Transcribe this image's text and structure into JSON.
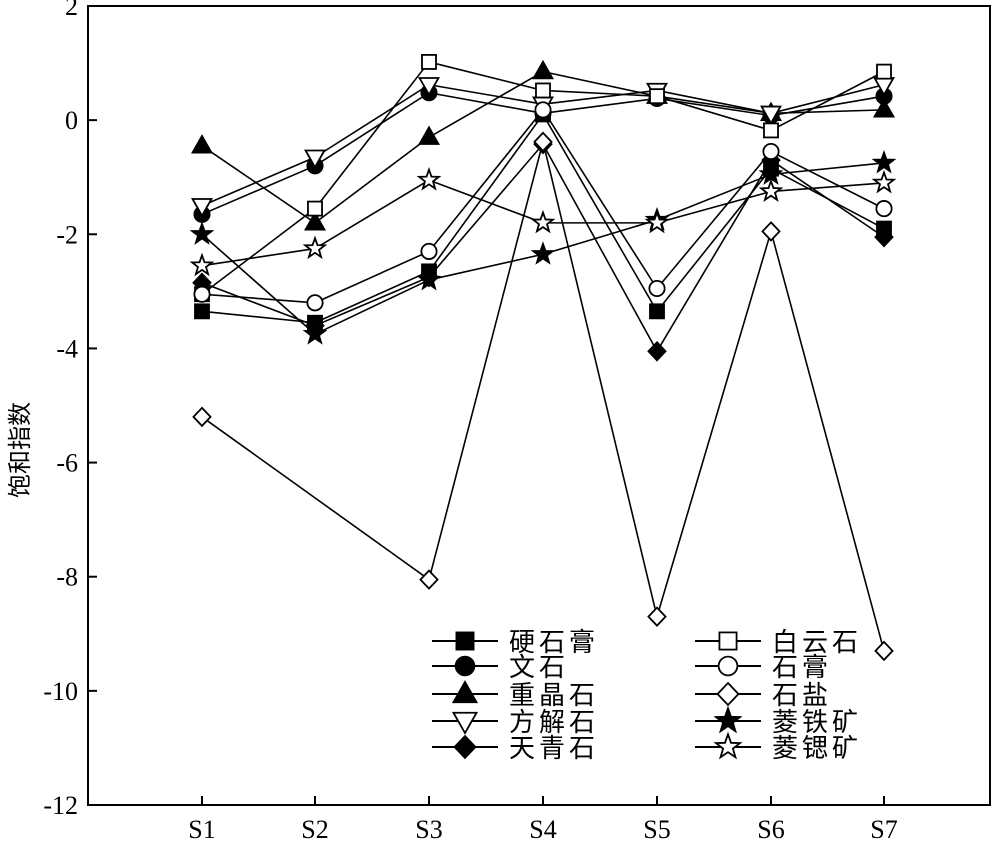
{
  "chart_data": {
    "type": "line",
    "title": "",
    "xlabel": "",
    "ylabel": "饱和指数",
    "categories": [
      "S1",
      "S2",
      "S3",
      "S4",
      "S5",
      "S6",
      "S7"
    ],
    "ylim": [
      -12,
      2
    ],
    "yticks": [
      2,
      0,
      -2,
      -4,
      -6,
      -8,
      -10,
      -12
    ],
    "grid": false,
    "legend_position": "bottom-right",
    "series": [
      {
        "name": "硬石膏",
        "marker": "square",
        "fill": "filled",
        "values": [
          -3.35,
          -3.55,
          -2.65,
          0.1,
          -3.35,
          -0.85,
          -1.9
        ]
      },
      {
        "name": "文石",
        "marker": "circle",
        "fill": "filled",
        "values": [
          -1.65,
          -0.8,
          0.48,
          0.12,
          0.38,
          0.08,
          0.42
        ]
      },
      {
        "name": "重晶石",
        "marker": "triangle-up",
        "fill": "filled",
        "values": [
          -0.45,
          -1.8,
          -0.3,
          0.85,
          0.42,
          0.12,
          0.18
        ]
      },
      {
        "name": "方解石",
        "marker": "triangle-down",
        "fill": "open",
        "values": [
          -1.5,
          -0.65,
          0.62,
          0.28,
          0.52,
          0.12,
          0.62
        ]
      },
      {
        "name": "天青石",
        "marker": "diamond",
        "fill": "filled",
        "values": [
          -2.85,
          -3.6,
          -2.75,
          -0.42,
          -4.05,
          -0.7,
          -2.05
        ]
      },
      {
        "name": "白云石",
        "marker": "square",
        "fill": "open",
        "values": [
          -3.05,
          -1.55,
          1.02,
          0.52,
          0.42,
          -0.18,
          0.85
        ]
      },
      {
        "name": "石膏",
        "marker": "circle",
        "fill": "open",
        "values": [
          -3.05,
          -3.2,
          -2.3,
          0.18,
          -2.95,
          -0.55,
          -1.55
        ]
      },
      {
        "name": "石盐",
        "marker": "diamond",
        "fill": "open",
        "values": [
          -5.2,
          null,
          -8.05,
          -0.38,
          -8.7,
          -1.95,
          -9.3
        ]
      },
      {
        "name": "菱铁矿",
        "marker": "star",
        "fill": "filled",
        "values": [
          -2.0,
          -3.75,
          -2.8,
          -2.35,
          -1.75,
          -0.95,
          -0.75
        ]
      },
      {
        "name": "菱锶矿",
        "marker": "star",
        "fill": "open",
        "values": [
          -2.55,
          -2.25,
          -1.05,
          -1.8,
          -1.8,
          -1.25,
          -1.1
        ]
      }
    ]
  }
}
